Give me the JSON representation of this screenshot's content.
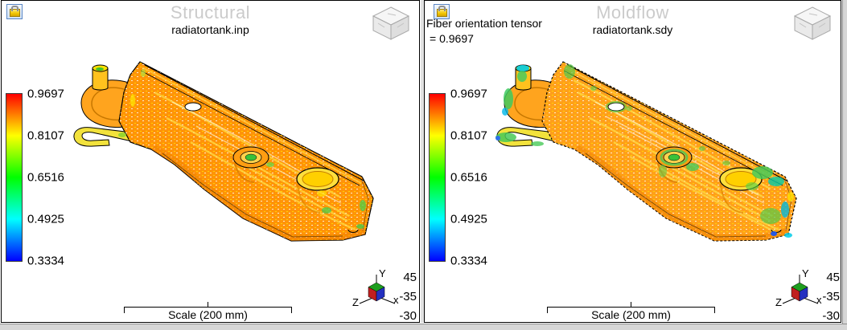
{
  "panels": [
    {
      "title": "Structural",
      "subtitle": "radiatortank.inp"
    },
    {
      "title": "Moldflow",
      "subtitle": "radiatortank.sdy",
      "annotation": {
        "line1": "Fiber orientation tensor",
        "line2": "= 0.9697"
      }
    }
  ],
  "legend": {
    "ticks": [
      "0.9697",
      "0.8107",
      "0.6516",
      "0.4925",
      "0.3334"
    ],
    "colors": [
      "#ff0000",
      "#ffff00",
      "#00ff00",
      "#00ffff",
      "#0000ff"
    ]
  },
  "triad": {
    "labels": {
      "y": "Y",
      "x": "x",
      "z": "Z"
    },
    "values": [
      "45",
      "-35",
      "-30"
    ],
    "cube_colors": {
      "top": "#1f9e1f",
      "left": "#c01f1f",
      "right": "#2430c0"
    }
  },
  "scale_bar": {
    "label": "Scale (200 mm)"
  },
  "colors": {
    "model_base_left": "#ff9408",
    "model_base_right": "#ffa01a",
    "title": "#cbcbcb",
    "frame": "#d6d6d6"
  },
  "icons": {
    "lock": "padlock",
    "view_cube": "3d-orientation-cube",
    "axis_cube": "rgb-axis-cube"
  }
}
